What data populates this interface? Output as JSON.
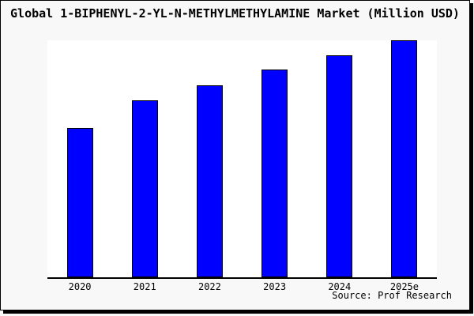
{
  "window": {
    "background_color": "#f8f8f8",
    "plot_background_color": "#ffffff",
    "border_color": "#000000"
  },
  "chart_data": {
    "type": "bar",
    "title": "Global 1-BIPHENYL-2-YL-N-METHYLMETHYLAMINE Market (Million USD)",
    "categories": [
      "2020",
      "2021",
      "2022",
      "2023",
      "2024",
      "2025e"
    ],
    "values": [
      63,
      74.5,
      81,
      87.5,
      93.5,
      100
    ],
    "value_note": "no y-axis tick labels shown; values estimated relative to tallest bar = 100",
    "xlabel": "",
    "ylabel": "",
    "ylim": [
      0,
      100
    ],
    "grid": false,
    "legend": false,
    "bar_color": "#0000ff",
    "bar_edge_color": "#000000"
  },
  "footer": {
    "source": "Source: Prof Research"
  }
}
